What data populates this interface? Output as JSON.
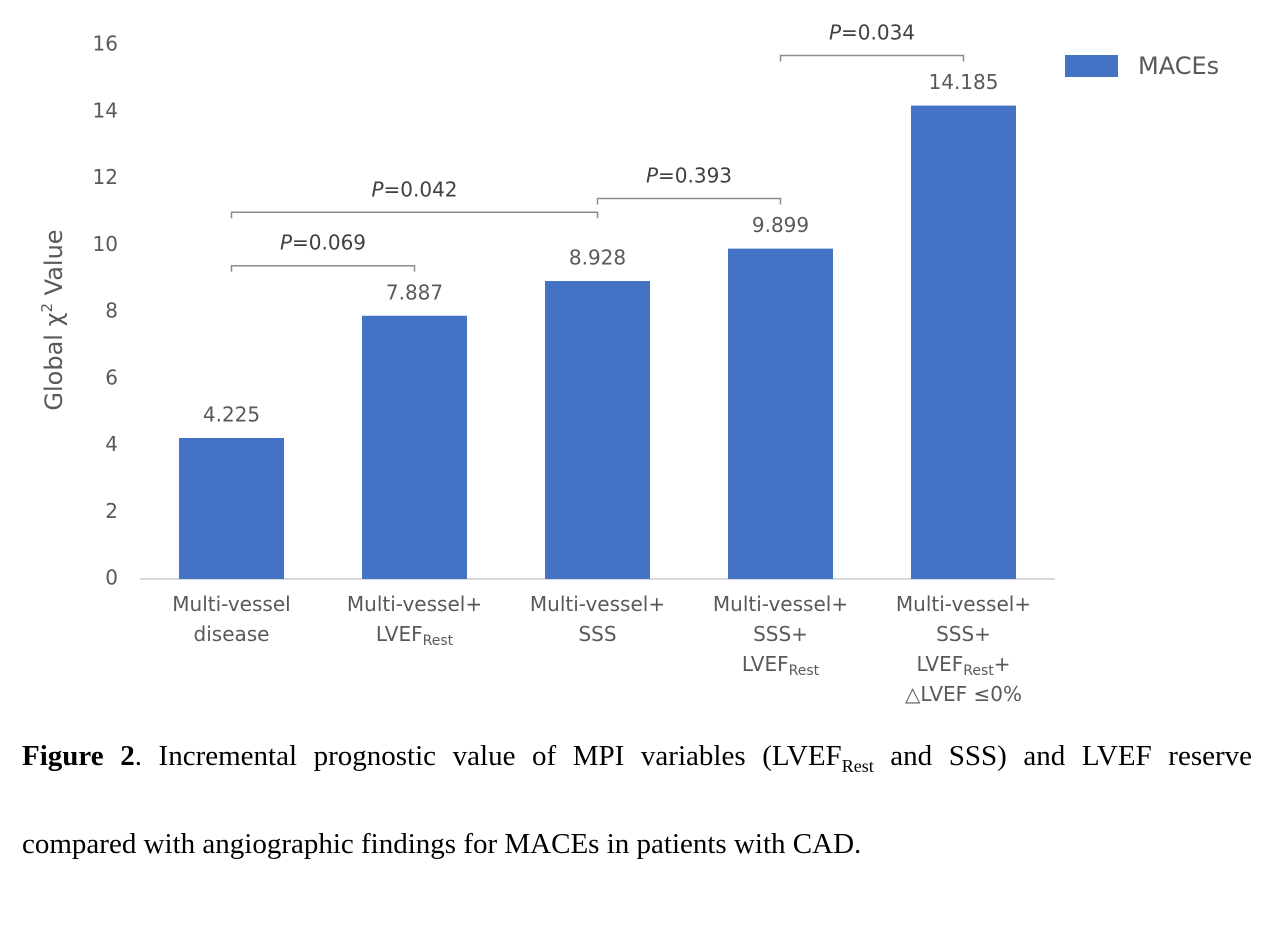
{
  "chart_data": {
    "type": "bar",
    "ylabel": {
      "pre": "Global χ",
      "sup": "2",
      "post": " Value"
    },
    "categories": [
      [
        [
          {
            "text": "Multi-vessel"
          }
        ],
        [
          {
            "text": "disease"
          }
        ]
      ],
      [
        [
          {
            "text": "Multi-vessel+"
          }
        ],
        [
          {
            "text": "LVEF"
          },
          {
            "sub": "Rest"
          }
        ]
      ],
      [
        [
          {
            "text": "Multi-vessel+"
          }
        ],
        [
          {
            "text": "SSS"
          }
        ]
      ],
      [
        [
          {
            "text": "Multi-vessel+"
          }
        ],
        [
          {
            "text": "SSS+"
          }
        ],
        [
          {
            "text": "LVEF"
          },
          {
            "sub": "Rest"
          }
        ]
      ],
      [
        [
          {
            "text": "Multi-vessel+"
          }
        ],
        [
          {
            "text": "SSS+"
          }
        ],
        [
          {
            "text": "LVEF"
          },
          {
            "sub": "Rest"
          },
          {
            "text": "+"
          }
        ],
        [
          {
            "text": "△LVEF ≤0%"
          }
        ]
      ]
    ],
    "series": [
      {
        "name": "MACEs",
        "color": "#4472c4",
        "values": [
          4.225,
          7.887,
          8.928,
          9.899,
          14.185
        ]
      }
    ],
    "ylim": [
      0,
      16
    ],
    "yticks": [
      0,
      2,
      4,
      6,
      8,
      10,
      12,
      14,
      16
    ],
    "legend": "top-right",
    "annotations": [
      {
        "italic": "P",
        "text": "=0.069",
        "from": 0,
        "to": 1
      },
      {
        "italic": "P",
        "text": "=0.042",
        "from": 0,
        "to": 2
      },
      {
        "italic": "P",
        "text": "=0.393",
        "from": 2,
        "to": 3
      },
      {
        "italic": "P",
        "text": "=0.034",
        "from": 3,
        "to": 4
      }
    ]
  },
  "caption": {
    "line1": {
      "bold": "Figure 2",
      "text": ". Incremental prognostic value of MPI variables (LVEF",
      "sub": "Rest",
      "rest": " and SSS) and LVEF reserve"
    },
    "line2": "compared with angiographic findings for MACEs in patients with CAD."
  }
}
